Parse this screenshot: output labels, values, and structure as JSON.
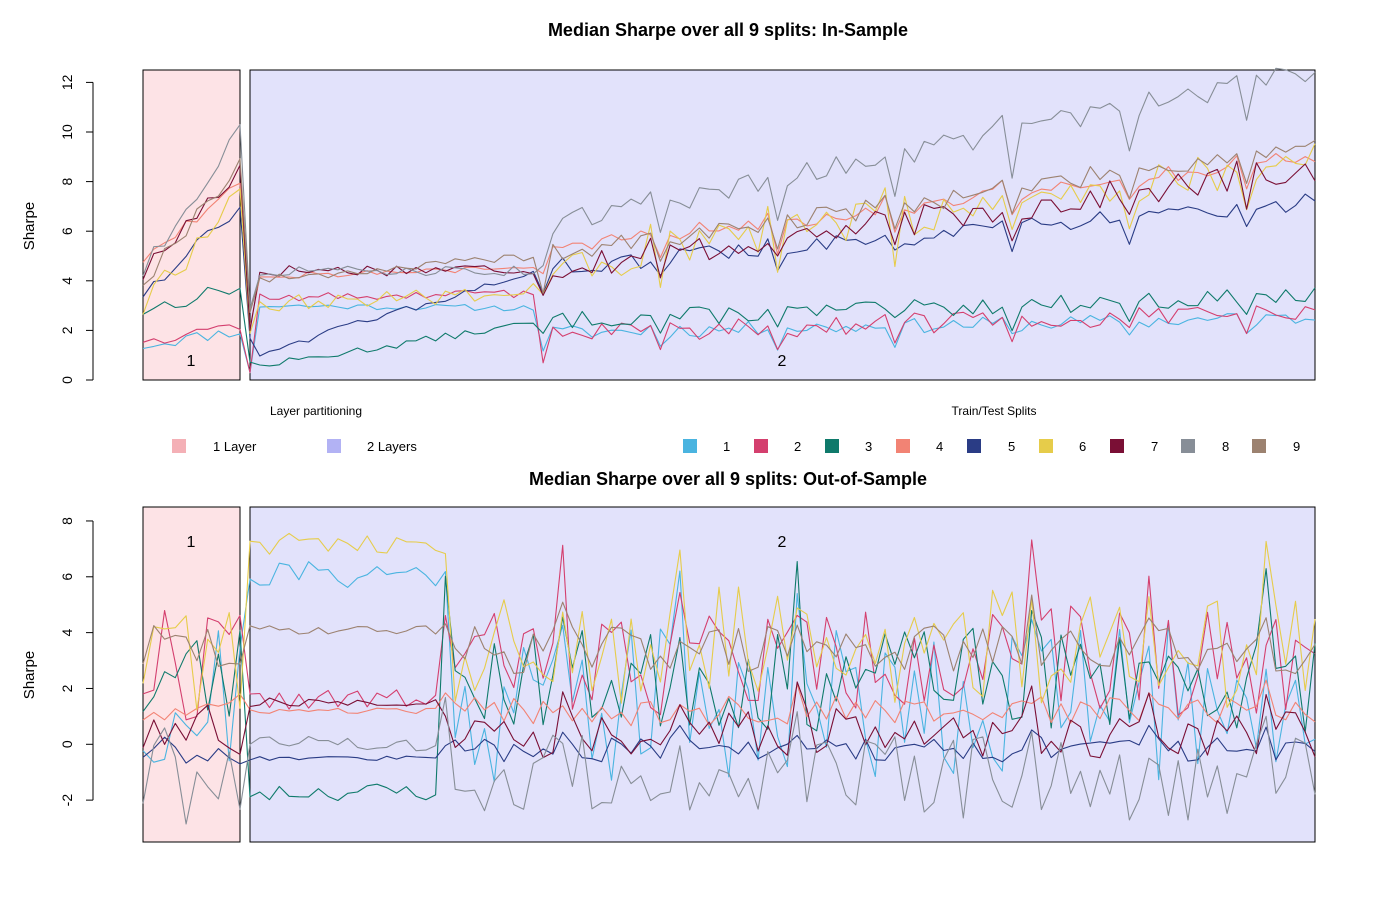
{
  "figure": {
    "ylabel": "Sharpe"
  },
  "legend": {
    "partition_items": [
      {
        "label": "1 Layer",
        "color": "#f4b0b6"
      },
      {
        "label": "2 Layers",
        "color": "#b2b2f4"
      }
    ],
    "series_items": [
      {
        "label": "1",
        "color": "#4ab4e0"
      },
      {
        "label": "2",
        "color": "#d43f6e"
      },
      {
        "label": "3",
        "color": "#0f7a6b"
      },
      {
        "label": "4",
        "color": "#f28374"
      },
      {
        "label": "5",
        "color": "#2a3c85"
      },
      {
        "label": "6",
        "color": "#e6cc4a"
      },
      {
        "label": "7",
        "color": "#7a0f35"
      },
      {
        "label": "8",
        "color": "#878e97"
      },
      {
        "label": "9",
        "color": "#9c8270"
      }
    ]
  },
  "chart_data": [
    {
      "type": "line",
      "title": "Median Sharpe over all 9 splits: In-Sample",
      "xlabel_left": "Layer partitioning",
      "xlabel_right": "Train/Test Splits",
      "ylabel": "Sharpe",
      "ylim": [
        0,
        12.5
      ],
      "yticks": [
        0,
        2,
        4,
        6,
        8,
        10,
        12
      ],
      "grid": false,
      "x_count": 120,
      "regions": [
        {
          "label": "1",
          "from_index": 0,
          "to_index": 9,
          "color": "#fde3e6"
        },
        {
          "label": "2",
          "from_index": 10,
          "to_index": 119,
          "color": "#e2e2fb"
        }
      ],
      "series": [
        {
          "name": "1",
          "color": "#4ab4e0",
          "start": 1.4,
          "ramp": [
            [
              0.5,
              2.0
            ],
            [
              3.0,
              2.9
            ],
            [
              1.9,
              2.5
            ]
          ],
          "noise": 0.25,
          "dip": 0.6,
          "seed": 11
        },
        {
          "name": "2",
          "color": "#d43f6e",
          "start": 1.7,
          "ramp": [
            [
              0.5,
              2.2
            ],
            [
              3.3,
              3.5
            ],
            [
              1.9,
              2.7
            ]
          ],
          "noise": 0.35,
          "dip": 0.8,
          "seed": 12
        },
        {
          "name": "3",
          "color": "#0f7a6b",
          "start": 2.8,
          "ramp": [
            [
              1.8,
              3.8
            ],
            [
              0.5,
              2.3
            ],
            [
              2.4,
              3.4
            ]
          ],
          "noise": 0.3,
          "dip": 0.7,
          "seed": 13
        },
        {
          "name": "4",
          "color": "#f28374",
          "start": 4.9,
          "ramp": [
            [
              5.3,
              8.0
            ],
            [
              4.2,
              4.5
            ],
            [
              5.3,
              9.0
            ]
          ],
          "noise": 0.3,
          "dip": 1.0,
          "seed": 14
        },
        {
          "name": "5",
          "color": "#2a3c85",
          "start": 3.5,
          "ramp": [
            [
              4.2,
              7.0
            ],
            [
              1.0,
              4.3
            ],
            [
              4.5,
              7.2
            ]
          ],
          "noise": 0.3,
          "dip": 0.8,
          "seed": 15
        },
        {
          "name": "6",
          "color": "#e6cc4a",
          "start": 3.0,
          "ramp": [
            [
              4.7,
              7.7
            ],
            [
              3.0,
              3.6
            ],
            [
              4.5,
              9.0
            ]
          ],
          "noise": 0.7,
          "dip": 1.8,
          "seed": 16
        },
        {
          "name": "7",
          "color": "#7a0f35",
          "start": 4.3,
          "ramp": [
            [
              5.0,
              8.6
            ],
            [
              4.4,
              4.5
            ],
            [
              4.5,
              8.5
            ]
          ],
          "noise": 0.5,
          "dip": 1.3,
          "seed": 17
        },
        {
          "name": "8",
          "color": "#878e97",
          "start": 4.4,
          "ramp": [
            [
              7.2,
              10.2
            ],
            [
              4.4,
              4.4
            ],
            [
              6.2,
              12.5
            ]
          ],
          "noise": 0.4,
          "dip": 1.5,
          "seed": 18
        },
        {
          "name": "9",
          "color": "#9c8270",
          "start": 4.0,
          "ramp": [
            [
              6.8,
              8.8
            ],
            [
              4.0,
              5.0
            ],
            [
              5.0,
              9.5
            ]
          ],
          "noise": 0.35,
          "dip": 1.2,
          "seed": 19
        }
      ]
    },
    {
      "type": "line",
      "title": "Median Sharpe over all 9 splits: Out-of-Sample",
      "ylabel": "Sharpe",
      "ylim": [
        -3.5,
        8.5
      ],
      "yticks": [
        -2,
        0,
        2,
        4,
        6,
        8
      ],
      "grid": false,
      "x_count": 120,
      "regions": [
        {
          "label": "1",
          "from_index": 0,
          "to_index": 9,
          "color": "#fde3e6"
        },
        {
          "label": "2",
          "from_index": 10,
          "to_index": 119,
          "color": "#e2e2fb"
        }
      ],
      "series": [
        {
          "name": "1",
          "color": "#4ab4e0",
          "level": 1.5,
          "early": 6.1,
          "amp": 2.6,
          "seed": 21
        },
        {
          "name": "2",
          "color": "#d43f6e",
          "level": 3.0,
          "early": 1.6,
          "amp": 1.8,
          "seed": 22
        },
        {
          "name": "3",
          "color": "#0f7a6b",
          "level": 2.3,
          "early": -1.7,
          "amp": 1.7,
          "seed": 23
        },
        {
          "name": "4",
          "color": "#f28374",
          "level": 1.2,
          "early": 1.2,
          "amp": 0.5,
          "seed": 24
        },
        {
          "name": "5",
          "color": "#2a3c85",
          "level": -0.2,
          "early": -0.5,
          "amp": 0.4,
          "seed": 25
        },
        {
          "name": "6",
          "color": "#e6cc4a",
          "level": 3.5,
          "early": 7.2,
          "amp": 2.0,
          "seed": 26
        },
        {
          "name": "7",
          "color": "#7a0f35",
          "level": 0.4,
          "early": 1.5,
          "amp": 0.8,
          "seed": 27
        },
        {
          "name": "8",
          "color": "#878e97",
          "level": -1.2,
          "early": 0.0,
          "amp": 1.4,
          "seed": 28
        },
        {
          "name": "9",
          "color": "#9c8270",
          "level": 3.4,
          "early": 4.1,
          "amp": 0.8,
          "seed": 29
        }
      ]
    }
  ]
}
